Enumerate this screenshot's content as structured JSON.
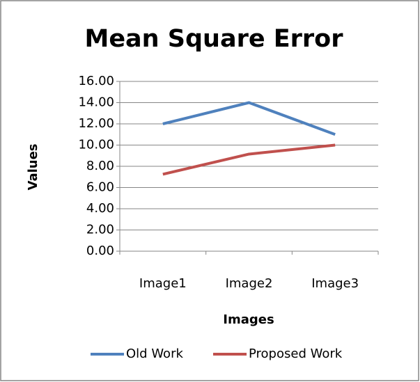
{
  "chart_data": {
    "type": "line",
    "title": "Mean Square Error",
    "x_label": "Images",
    "y_label": "Values",
    "categories": [
      "Image1",
      "Image2",
      "Image3"
    ],
    "series": [
      {
        "name": "Old Work",
        "color": "#4f81bd",
        "values": [
          12,
          14,
          11
        ]
      },
      {
        "name": "Proposed Work",
        "color": "#c0504d",
        "values": [
          7.25,
          9.15,
          10
        ]
      }
    ],
    "ylim": [
      0,
      16
    ],
    "yticks": [
      {
        "value": 0,
        "label": "0.00"
      },
      {
        "value": 2,
        "label": "2.00"
      },
      {
        "value": 4,
        "label": "4.00"
      },
      {
        "value": 6,
        "label": "6.00"
      },
      {
        "value": 8,
        "label": "8.00"
      },
      {
        "value": 10,
        "label": "10.00"
      },
      {
        "value": 12,
        "label": "12.00"
      },
      {
        "value": 14,
        "label": "14.00"
      },
      {
        "value": 16,
        "label": "16.00"
      }
    ],
    "grid": true,
    "legend": "bottom"
  }
}
